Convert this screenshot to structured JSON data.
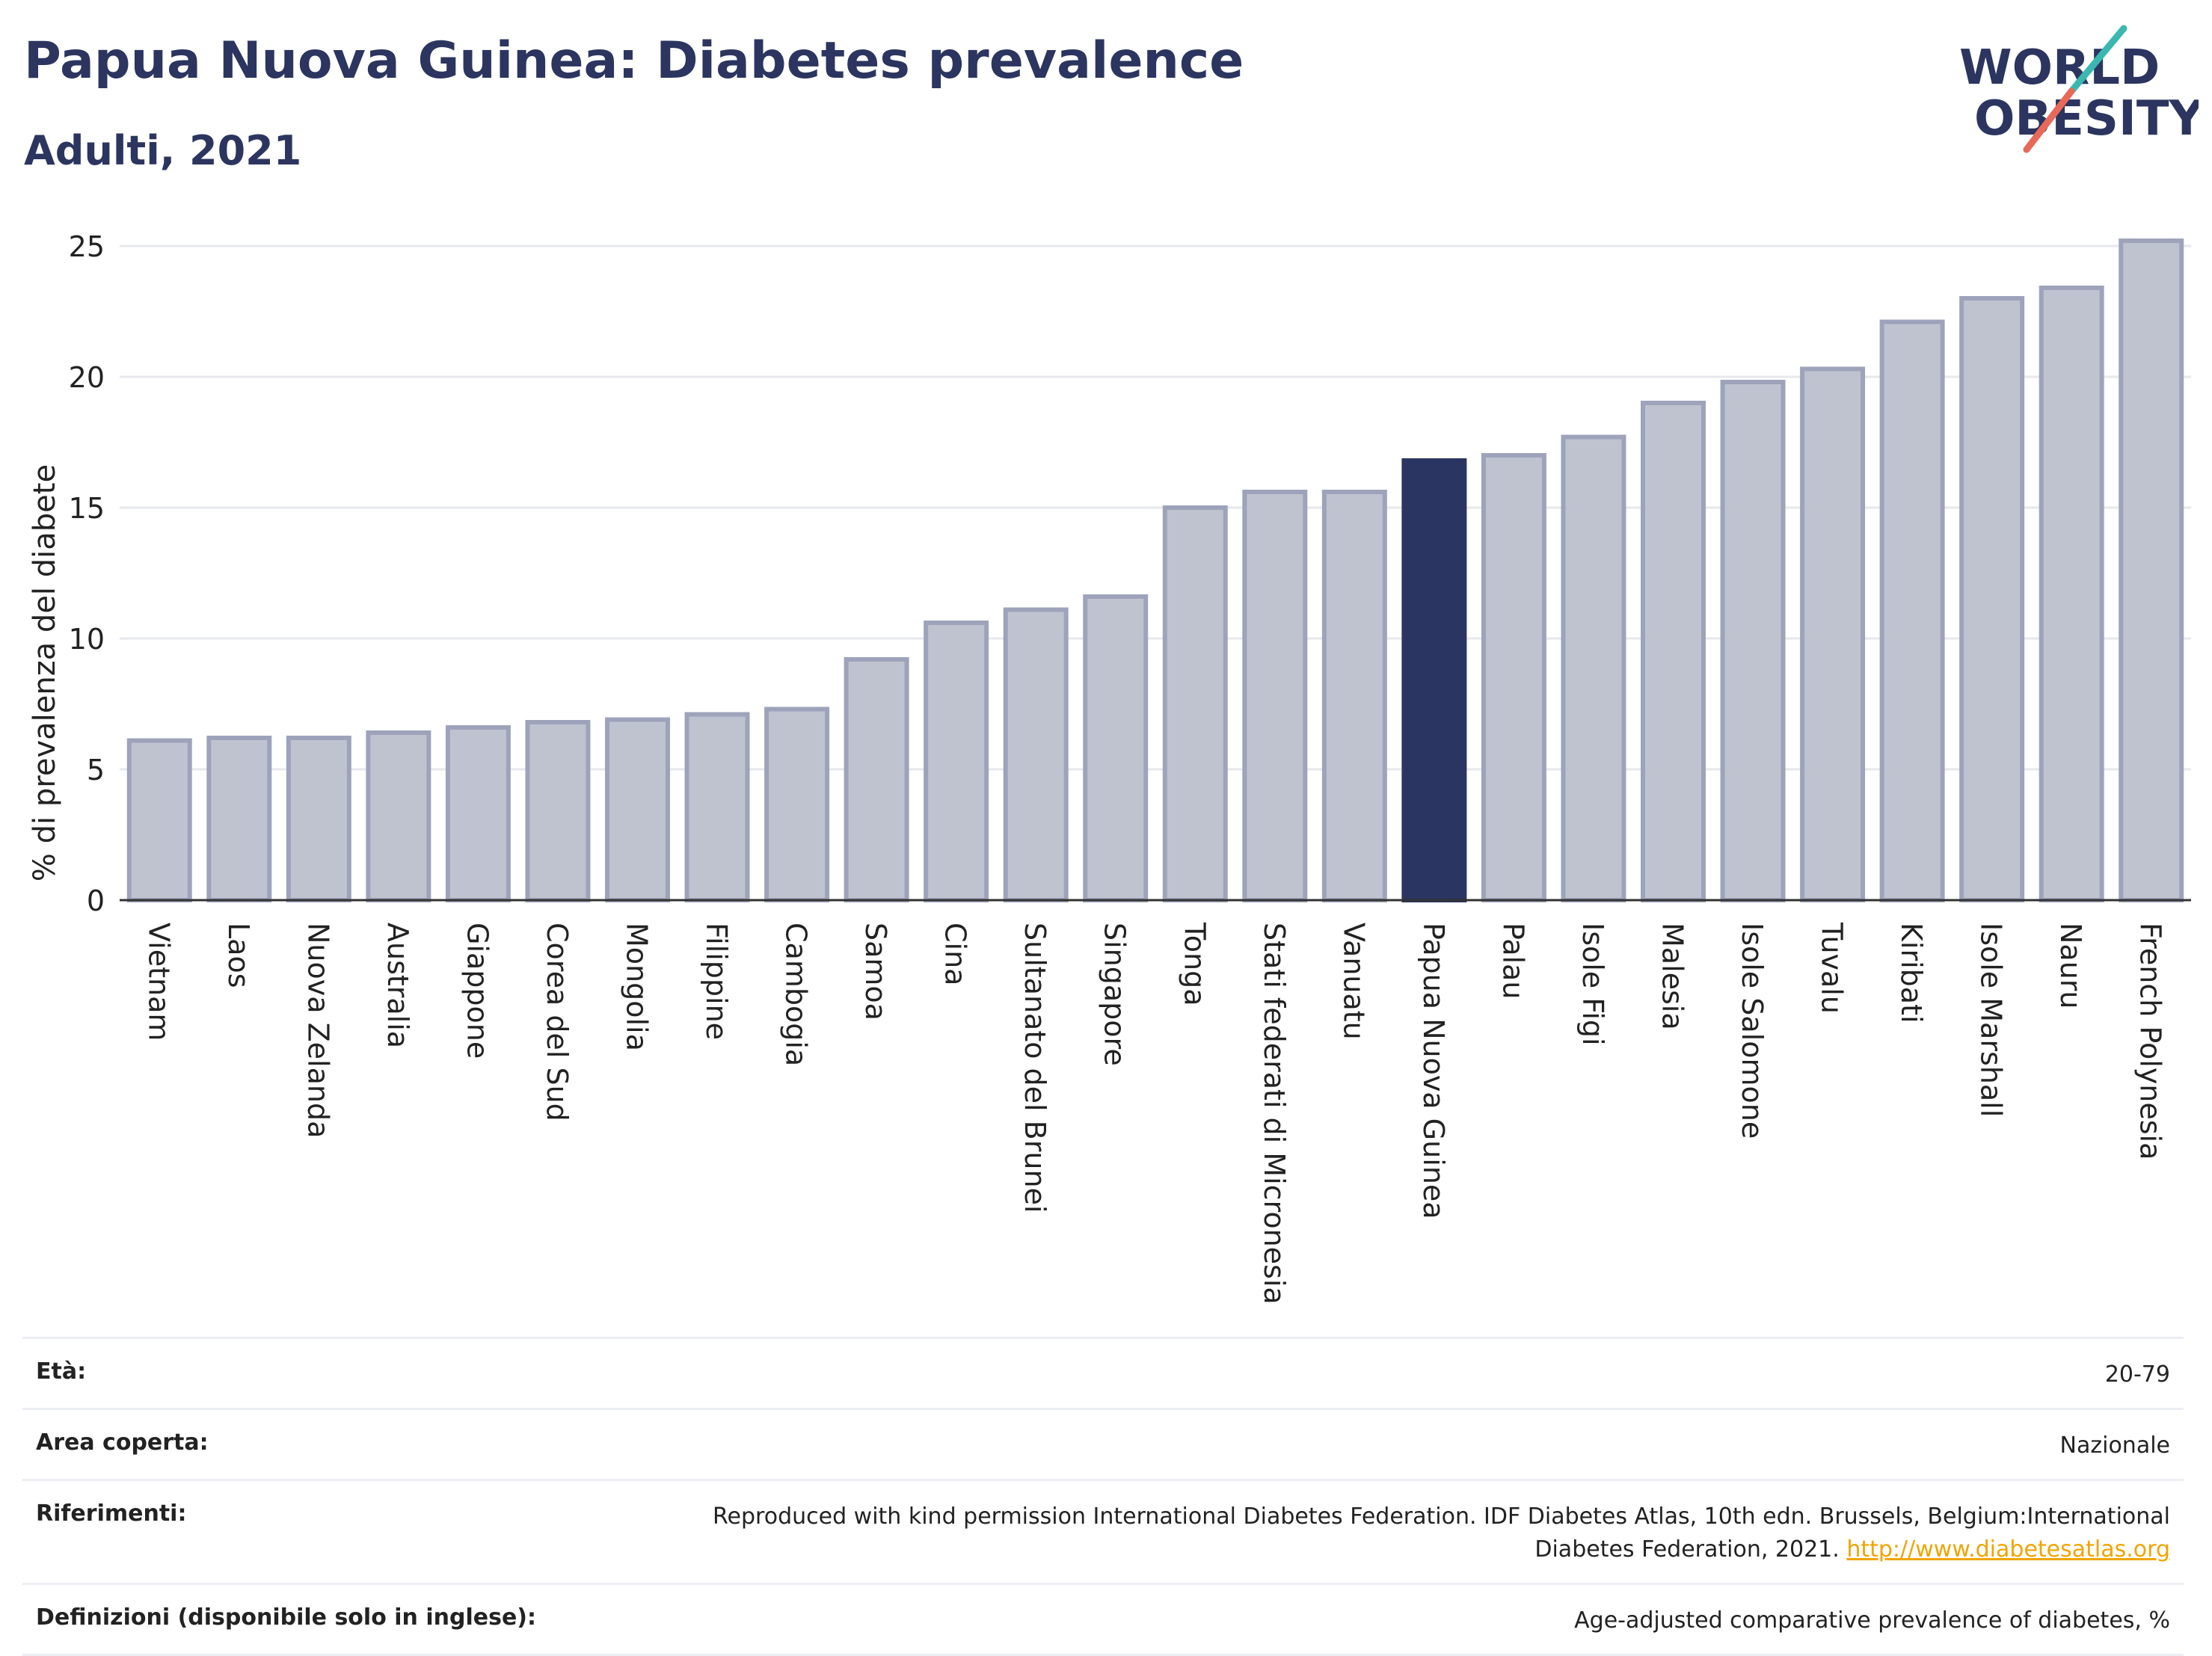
{
  "header": {
    "title": "Papua Nuova Guinea: Diabetes prevalence",
    "subtitle": "Adulti, 2021"
  },
  "logo": {
    "line1": "WORLD",
    "line2": "OBESITY",
    "accent_teal": "#3ab8b0",
    "accent_red": "#e8695a"
  },
  "colors": {
    "bar": "#bfc3d0",
    "bar_border": "#9ea3bb",
    "highlight": "#2a3561",
    "grid": "#e6e8ee",
    "axis": "#333333"
  },
  "chart_data": {
    "type": "bar",
    "ylabel": "% di prevalenza del diabete",
    "ylim": [
      0,
      26
    ],
    "yticks": [
      0,
      5,
      10,
      15,
      20,
      25
    ],
    "highlight": "Papua Nuova Guinea",
    "categories": [
      "Vietnam",
      "Laos",
      "Nuova Zelanda",
      "Australia",
      "Giappone",
      "Corea del Sud",
      "Mongolia",
      "Filippine",
      "Cambogia",
      "Samoa",
      "Cina",
      "Sultanato del Brunei",
      "Singapore",
      "Tonga",
      "Stati federati di Micronesia",
      "Vanuatu",
      "Papua Nuova Guinea",
      "Palau",
      "Isole Figi",
      "Malesia",
      "Isole Salomone",
      "Tuvalu",
      "Kiribati",
      "Isole Marshall",
      "Nauru",
      "French Polynesia"
    ],
    "values": [
      6.1,
      6.2,
      6.2,
      6.4,
      6.6,
      6.8,
      6.9,
      7.1,
      7.3,
      9.2,
      10.6,
      11.1,
      11.6,
      15.0,
      15.6,
      15.6,
      16.8,
      17.0,
      17.7,
      19.0,
      19.8,
      20.3,
      22.1,
      23.0,
      23.4,
      25.2
    ]
  },
  "info": {
    "rows": [
      {
        "key": "Età:",
        "value": "20-79"
      },
      {
        "key": "Area coperta:",
        "value": "Nazionale"
      },
      {
        "key": "Riferimenti:",
        "value": "Reproduced with kind permission International Diabetes Federation.  IDF Diabetes Atlas, 10th edn. Brussels, Belgium:International Diabetes Federation, 2021.",
        "link": "http://www.diabetesatlas.org"
      },
      {
        "key": "Definizioni (disponibile solo in inglese):",
        "value": "Age-adjusted comparative prevalence of diabetes, %"
      }
    ]
  }
}
